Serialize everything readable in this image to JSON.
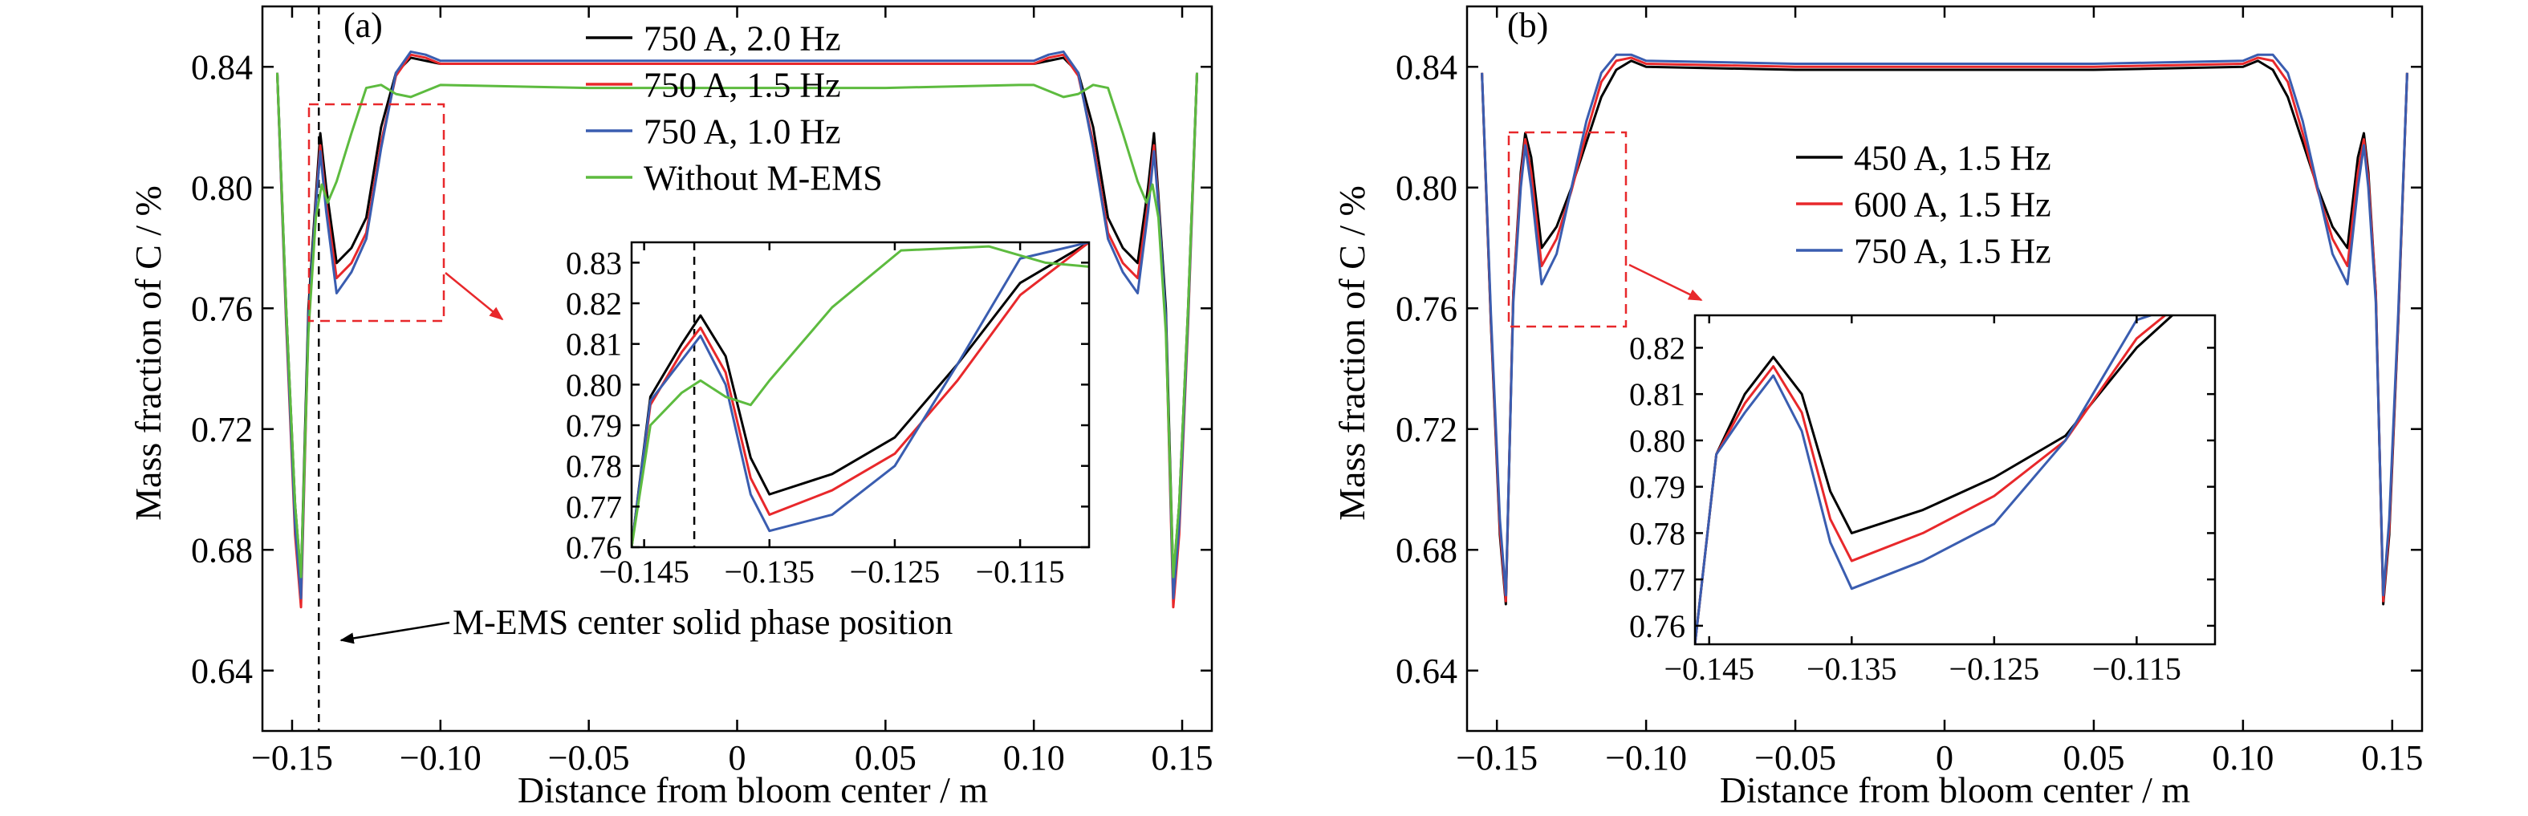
{
  "panels": [
    {
      "label": "(a)",
      "xlabel": "Distance from bloom center / m",
      "ylabel": "Mass fraction of C / %",
      "annotation": "M-EMS center solid phase position"
    },
    {
      "label": "(b)",
      "xlabel": "Distance from bloom center / m",
      "ylabel": "Mass fraction of C / %"
    }
  ],
  "chart_data": [
    {
      "type": "line",
      "panel": "a-main",
      "xlim": [
        -0.16,
        0.16
      ],
      "ylim": [
        0.62,
        0.86
      ],
      "xticks": [
        -0.15,
        -0.1,
        -0.05,
        0,
        0.05,
        0.1,
        0.15
      ],
      "xtick_labels": [
        "−0.15",
        "−0.10",
        "−0.05",
        "0",
        "0.05",
        "0.10",
        "0.15"
      ],
      "yticks": [
        0.64,
        0.68,
        0.72,
        0.76,
        0.8,
        0.84
      ],
      "ytick_labels": [
        "0.64",
        "0.68",
        "0.72",
        "0.76",
        "0.80",
        "0.84"
      ],
      "legend_position": "top-center",
      "vline_x": -0.141,
      "colors": [
        "#000000",
        "#e8282b",
        "#3a5db0",
        "#5dbb3f"
      ],
      "series": [
        {
          "name": "750 A, 2.0 Hz",
          "x": [
            -0.155,
            -0.152,
            -0.149,
            -0.147,
            -0.1445,
            -0.142,
            -0.1405,
            -0.1385,
            -0.135,
            -0.13,
            -0.125,
            -0.12,
            -0.115,
            -0.11,
            -0.105,
            -0.1,
            -0.05,
            0,
            0.05,
            0.1,
            0.105,
            0.11,
            0.115,
            0.12,
            0.125,
            0.13,
            0.135,
            0.1385,
            0.1405,
            0.142,
            0.1445,
            0.147,
            0.149,
            0.152,
            0.155
          ],
          "y": [
            0.838,
            0.76,
            0.695,
            0.67,
            0.76,
            0.797,
            0.818,
            0.8,
            0.775,
            0.78,
            0.79,
            0.82,
            0.838,
            0.843,
            0.842,
            0.841,
            0.841,
            0.841,
            0.841,
            0.841,
            0.842,
            0.843,
            0.838,
            0.82,
            0.79,
            0.78,
            0.775,
            0.8,
            0.818,
            0.797,
            0.76,
            0.67,
            0.695,
            0.76,
            0.838
          ]
        },
        {
          "name": "750 A, 1.5 Hz",
          "x": [
            -0.155,
            -0.152,
            -0.149,
            -0.147,
            -0.1445,
            -0.142,
            -0.1405,
            -0.1385,
            -0.135,
            -0.13,
            -0.125,
            -0.12,
            -0.115,
            -0.11,
            -0.105,
            -0.1,
            -0.05,
            0,
            0.05,
            0.1,
            0.105,
            0.11,
            0.115,
            0.12,
            0.125,
            0.13,
            0.135,
            0.1385,
            0.1405,
            0.142,
            0.1445,
            0.147,
            0.149,
            0.152,
            0.155
          ],
          "y": [
            0.838,
            0.755,
            0.685,
            0.661,
            0.755,
            0.795,
            0.814,
            0.795,
            0.77,
            0.775,
            0.785,
            0.815,
            0.837,
            0.844,
            0.843,
            0.841,
            0.841,
            0.841,
            0.841,
            0.841,
            0.843,
            0.844,
            0.837,
            0.815,
            0.785,
            0.775,
            0.77,
            0.795,
            0.814,
            0.795,
            0.755,
            0.661,
            0.685,
            0.755,
            0.838
          ]
        },
        {
          "name": "750 A, 1.0 Hz",
          "x": [
            -0.155,
            -0.152,
            -0.149,
            -0.147,
            -0.1445,
            -0.142,
            -0.1405,
            -0.1385,
            -0.135,
            -0.13,
            -0.125,
            -0.12,
            -0.115,
            -0.11,
            -0.105,
            -0.1,
            -0.05,
            0,
            0.05,
            0.1,
            0.105,
            0.11,
            0.115,
            0.12,
            0.125,
            0.13,
            0.135,
            0.1385,
            0.1405,
            0.142,
            0.1445,
            0.147,
            0.149,
            0.152,
            0.155
          ],
          "y": [
            0.838,
            0.757,
            0.688,
            0.664,
            0.757,
            0.794,
            0.812,
            0.792,
            0.765,
            0.772,
            0.783,
            0.813,
            0.838,
            0.845,
            0.844,
            0.842,
            0.842,
            0.842,
            0.842,
            0.842,
            0.844,
            0.845,
            0.838,
            0.813,
            0.783,
            0.772,
            0.765,
            0.792,
            0.812,
            0.794,
            0.757,
            0.664,
            0.688,
            0.757,
            0.838
          ]
        },
        {
          "name": "Without M-EMS",
          "x": [
            -0.155,
            -0.152,
            -0.149,
            -0.147,
            -0.1445,
            -0.142,
            -0.14,
            -0.138,
            -0.135,
            -0.13,
            -0.125,
            -0.12,
            -0.115,
            -0.11,
            -0.1,
            -0.05,
            0,
            0.05,
            0.095,
            0.1,
            0.11,
            0.115,
            0.12,
            0.125,
            0.13,
            0.135,
            0.138,
            0.14,
            0.142,
            0.1445,
            0.147,
            0.149,
            0.152,
            0.155
          ],
          "y": [
            0.838,
            0.76,
            0.695,
            0.671,
            0.752,
            0.79,
            0.801,
            0.795,
            0.802,
            0.818,
            0.833,
            0.834,
            0.831,
            0.83,
            0.834,
            0.833,
            0.833,
            0.833,
            0.834,
            0.834,
            0.83,
            0.831,
            0.834,
            0.833,
            0.818,
            0.802,
            0.795,
            0.801,
            0.79,
            0.752,
            0.671,
            0.695,
            0.76,
            0.838
          ]
        }
      ]
    },
    {
      "type": "line",
      "panel": "a-inset",
      "xlim": [
        -0.146,
        -0.1095
      ],
      "ylim": [
        0.76,
        0.835
      ],
      "xticks": [
        -0.145,
        -0.135,
        -0.125,
        -0.115
      ],
      "xtick_labels": [
        "−0.145",
        "−0.135",
        "−0.125",
        "−0.115"
      ],
      "yticks": [
        0.76,
        0.77,
        0.78,
        0.79,
        0.8,
        0.81,
        0.82,
        0.83
      ],
      "ytick_labels": [
        "0.76",
        "0.77",
        "0.78",
        "0.79",
        "0.80",
        "0.81",
        "0.82",
        "0.83"
      ],
      "vline_x": -0.141,
      "colors": [
        "#000000",
        "#e8282b",
        "#3a5db0",
        "#5dbb3f"
      ],
      "series": [
        {
          "name": "750 A, 2.0 Hz",
          "x": [
            -0.146,
            -0.1445,
            -0.142,
            -0.1405,
            -0.1385,
            -0.1365,
            -0.135,
            -0.13,
            -0.125,
            -0.12,
            -0.115,
            -0.1095
          ],
          "y": [
            0.76,
            0.797,
            0.81,
            0.817,
            0.807,
            0.782,
            0.773,
            0.778,
            0.787,
            0.805,
            0.825,
            0.835
          ]
        },
        {
          "name": "750 A, 1.5 Hz",
          "x": [
            -0.146,
            -0.1445,
            -0.142,
            -0.1405,
            -0.1385,
            -0.1365,
            -0.135,
            -0.13,
            -0.125,
            -0.12,
            -0.115,
            -0.1095
          ],
          "y": [
            0.76,
            0.795,
            0.808,
            0.814,
            0.803,
            0.777,
            0.768,
            0.774,
            0.783,
            0.801,
            0.822,
            0.835
          ]
        },
        {
          "name": "750 A, 1.0 Hz",
          "x": [
            -0.146,
            -0.1445,
            -0.142,
            -0.1405,
            -0.1385,
            -0.1365,
            -0.135,
            -0.13,
            -0.125,
            -0.12,
            -0.115,
            -0.1095
          ],
          "y": [
            0.76,
            0.796,
            0.806,
            0.812,
            0.8,
            0.773,
            0.764,
            0.768,
            0.78,
            0.805,
            0.831,
            0.835
          ]
        },
        {
          "name": "Without M-EMS",
          "x": [
            -0.146,
            -0.1445,
            -0.142,
            -0.1405,
            -0.1385,
            -0.1365,
            -0.135,
            -0.13,
            -0.1245,
            -0.1175,
            -0.113,
            -0.1095
          ],
          "y": [
            0.76,
            0.79,
            0.798,
            0.801,
            0.797,
            0.795,
            0.801,
            0.819,
            0.833,
            0.834,
            0.83,
            0.829
          ]
        }
      ]
    },
    {
      "type": "line",
      "panel": "b-main",
      "xlim": [
        -0.16,
        0.16
      ],
      "ylim": [
        0.62,
        0.86
      ],
      "xticks": [
        -0.15,
        -0.1,
        -0.05,
        0,
        0.05,
        0.1,
        0.15
      ],
      "xtick_labels": [
        "−0.15",
        "−0.10",
        "−0.05",
        "0",
        "0.05",
        "0.10",
        "0.15"
      ],
      "yticks": [
        0.64,
        0.68,
        0.72,
        0.76,
        0.8,
        0.84
      ],
      "ytick_labels": [
        "0.64",
        "0.68",
        "0.72",
        "0.76",
        "0.80",
        "0.84"
      ],
      "legend_position": "center-left",
      "colors": [
        "#000000",
        "#e8282b",
        "#3a5db0"
      ],
      "series": [
        {
          "name": "450 A, 1.5 Hz",
          "x": [
            -0.155,
            -0.152,
            -0.149,
            -0.147,
            -0.1445,
            -0.142,
            -0.1405,
            -0.1385,
            -0.135,
            -0.13,
            -0.125,
            -0.12,
            -0.115,
            -0.11,
            -0.105,
            -0.1,
            -0.05,
            0,
            0.05,
            0.1,
            0.105,
            0.11,
            0.115,
            0.12,
            0.125,
            0.13,
            0.135,
            0.1385,
            0.1405,
            0.142,
            0.1445,
            0.147,
            0.149,
            0.152,
            0.155
          ],
          "y": [
            0.838,
            0.755,
            0.685,
            0.662,
            0.765,
            0.805,
            0.818,
            0.81,
            0.78,
            0.787,
            0.8,
            0.815,
            0.83,
            0.839,
            0.842,
            0.84,
            0.839,
            0.839,
            0.839,
            0.84,
            0.842,
            0.839,
            0.83,
            0.815,
            0.8,
            0.787,
            0.78,
            0.81,
            0.818,
            0.805,
            0.765,
            0.662,
            0.685,
            0.755,
            0.838
          ]
        },
        {
          "name": "600 A, 1.5 Hz",
          "x": [
            -0.155,
            -0.152,
            -0.149,
            -0.147,
            -0.1445,
            -0.142,
            -0.1405,
            -0.1385,
            -0.135,
            -0.13,
            -0.125,
            -0.12,
            -0.115,
            -0.11,
            -0.105,
            -0.1,
            -0.05,
            0,
            0.05,
            0.1,
            0.105,
            0.11,
            0.115,
            0.12,
            0.125,
            0.13,
            0.135,
            0.1385,
            0.1405,
            0.142,
            0.1445,
            0.147,
            0.149,
            0.152,
            0.155
          ],
          "y": [
            0.838,
            0.756,
            0.687,
            0.663,
            0.765,
            0.803,
            0.816,
            0.805,
            0.774,
            0.783,
            0.799,
            0.818,
            0.835,
            0.842,
            0.843,
            0.841,
            0.84,
            0.84,
            0.84,
            0.841,
            0.843,
            0.842,
            0.835,
            0.818,
            0.799,
            0.783,
            0.774,
            0.805,
            0.816,
            0.803,
            0.765,
            0.663,
            0.687,
            0.756,
            0.838
          ]
        },
        {
          "name": "750 A, 1.5 Hz",
          "x": [
            -0.155,
            -0.152,
            -0.149,
            -0.147,
            -0.1445,
            -0.142,
            -0.1405,
            -0.1385,
            -0.135,
            -0.13,
            -0.125,
            -0.12,
            -0.115,
            -0.11,
            -0.105,
            -0.1,
            -0.05,
            0,
            0.05,
            0.1,
            0.105,
            0.11,
            0.115,
            0.12,
            0.125,
            0.13,
            0.135,
            0.1385,
            0.1405,
            0.142,
            0.1445,
            0.147,
            0.149,
            0.152,
            0.155
          ],
          "y": [
            0.838,
            0.758,
            0.69,
            0.665,
            0.762,
            0.8,
            0.814,
            0.8,
            0.768,
            0.778,
            0.8,
            0.822,
            0.838,
            0.844,
            0.844,
            0.842,
            0.841,
            0.841,
            0.841,
            0.842,
            0.844,
            0.844,
            0.838,
            0.822,
            0.8,
            0.778,
            0.768,
            0.8,
            0.814,
            0.8,
            0.762,
            0.665,
            0.69,
            0.758,
            0.838
          ]
        }
      ]
    },
    {
      "type": "line",
      "panel": "b-inset",
      "xlim": [
        -0.146,
        -0.1095
      ],
      "ylim": [
        0.756,
        0.827
      ],
      "xticks": [
        -0.145,
        -0.135,
        -0.125,
        -0.115
      ],
      "xtick_labels": [
        "−0.145",
        "−0.135",
        "−0.125",
        "−0.115"
      ],
      "yticks": [
        0.76,
        0.77,
        0.78,
        0.79,
        0.8,
        0.81,
        0.82
      ],
      "ytick_labels": [
        "0.76",
        "0.77",
        "0.78",
        "0.79",
        "0.80",
        "0.81",
        "0.82"
      ],
      "colors": [
        "#000000",
        "#e8282b",
        "#3a5db0"
      ],
      "series": [
        {
          "name": "450 A, 1.5 Hz",
          "x": [
            -0.146,
            -0.1445,
            -0.1425,
            -0.1405,
            -0.1385,
            -0.1365,
            -0.135,
            -0.13,
            -0.125,
            -0.12,
            -0.115,
            -0.1125
          ],
          "y": [
            0.756,
            0.797,
            0.81,
            0.818,
            0.81,
            0.789,
            0.78,
            0.785,
            0.792,
            0.801,
            0.82,
            0.827
          ]
        },
        {
          "name": "600 A, 1.5 Hz",
          "x": [
            -0.146,
            -0.1445,
            -0.1425,
            -0.1405,
            -0.1385,
            -0.1365,
            -0.135,
            -0.13,
            -0.125,
            -0.12,
            -0.115,
            -0.113
          ],
          "y": [
            0.756,
            0.797,
            0.808,
            0.816,
            0.806,
            0.783,
            0.774,
            0.78,
            0.788,
            0.8,
            0.822,
            0.827
          ]
        },
        {
          "name": "750 A, 1.5 Hz",
          "x": [
            -0.146,
            -0.1445,
            -0.1425,
            -0.1405,
            -0.1385,
            -0.1365,
            -0.135,
            -0.13,
            -0.125,
            -0.12,
            -0.115,
            -0.114
          ],
          "y": [
            0.756,
            0.797,
            0.806,
            0.814,
            0.802,
            0.778,
            0.768,
            0.774,
            0.782,
            0.8,
            0.826,
            0.827
          ]
        }
      ]
    }
  ]
}
